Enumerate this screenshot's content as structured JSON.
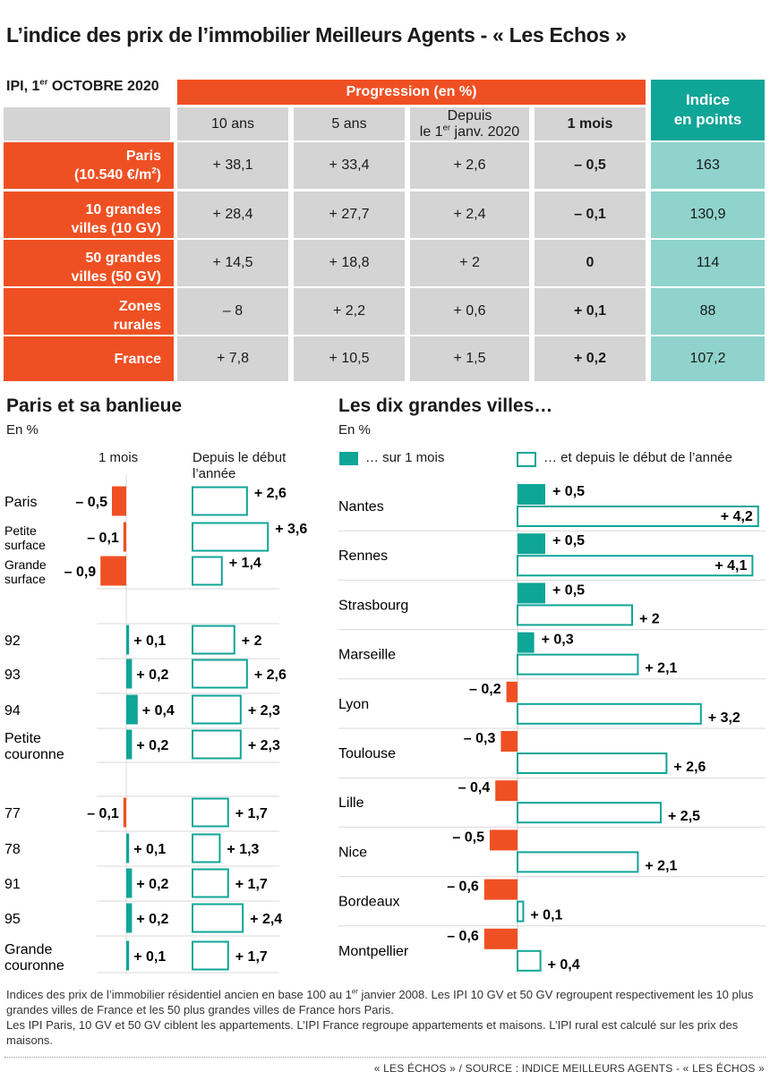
{
  "title": "L’indice des prix de l’immobilier Meilleurs Agents - « Les Echos »",
  "table": {
    "date_label_pre": "IPI, 1",
    "date_label_sup": "er",
    "date_label_post": " OCTOBRE 2020",
    "progression_header": "Progression (en %)",
    "index_header_line1": "Indice",
    "index_header_line2": "en points",
    "columns": [
      "10 ans",
      "5 ans",
      "Depuis",
      "1 mois"
    ],
    "col_since_line2_pre": "le 1",
    "col_since_line2_sup": "er",
    "col_since_line2_post": " janv. 2020",
    "rows": [
      {
        "label_line1": "Paris",
        "label_line2_pre": "(10.540 €/m",
        "label_line2_sup": "2",
        "label_line2_post": ")",
        "values": [
          "+ 38,1",
          "+ 33,4",
          "+ 2,6",
          "– 0,5"
        ],
        "index": "163"
      },
      {
        "label_line1": "10 grandes",
        "label_line2": "villes (10 GV)",
        "values": [
          "+ 28,4",
          "+ 27,7",
          "+ 2,4",
          "– 0,1"
        ],
        "index": "130,9"
      },
      {
        "label_line1": "50 grandes",
        "label_line2": "villes (50 GV)",
        "values": [
          "+ 14,5",
          "+ 18,8",
          "+ 2",
          "0"
        ],
        "index": "114"
      },
      {
        "label_line1": "Zones",
        "label_line2": "rurales",
        "values": [
          "– 8",
          "+ 2,2",
          "+ 0,6",
          "+ 0,1"
        ],
        "index": "88"
      },
      {
        "label_line1": "France",
        "label_line2": "",
        "values": [
          "+ 7,8",
          "+ 10,5",
          "+ 1,5",
          "+ 0,2"
        ],
        "index": "107,2"
      }
    ]
  },
  "paris_section": {
    "title": "Paris et sa banlieue",
    "unit": "En %",
    "col_month": "1 mois",
    "col_ytd_line1": "Depuis le début",
    "col_ytd_line2": "l’année"
  },
  "cities_section": {
    "title": "Les dix grandes villes…",
    "unit": "En %",
    "legend_month": "… sur 1 mois",
    "legend_ytd": "… et depuis le début de l’année"
  },
  "chart_data": [
    {
      "type": "bar",
      "title": "Paris et sa banlieue",
      "unit": "En %",
      "categories": [
        "Paris",
        "Petite surface",
        "Grande surface",
        "92",
        "93",
        "94",
        "Petite couronne",
        "77",
        "78",
        "91",
        "95",
        "Grande couronne"
      ],
      "series": [
        {
          "name": "1 mois",
          "values": [
            -0.5,
            -0.1,
            -0.9,
            0.1,
            0.2,
            0.4,
            0.2,
            -0.1,
            0.1,
            0.2,
            0.2,
            0.1
          ],
          "labels": [
            "– 0,5",
            "– 0,1",
            "– 0,9",
            "+ 0,1",
            "+ 0,2",
            "+ 0,4",
            "+ 0,2",
            "– 0,1",
            "+ 0,1",
            "+ 0,2",
            "+ 0,2",
            "+ 0,1"
          ]
        },
        {
          "name": "Depuis le début l’année",
          "values": [
            2.6,
            3.6,
            1.4,
            2.0,
            2.6,
            2.3,
            2.3,
            1.7,
            1.3,
            1.7,
            2.4,
            1.7
          ],
          "labels": [
            "+ 2,6",
            "+ 3,6",
            "+ 1,4",
            "+ 2",
            "+ 2,6",
            "+ 2,3",
            "+ 2,3",
            "+ 1,7",
            "+ 1,3",
            "+ 1,7",
            "+ 2,4",
            "+ 1,7"
          ]
        }
      ],
      "colors": {
        "negative": "#ef5023",
        "positive": "#0fa597",
        "outline": "#0fa597"
      }
    },
    {
      "type": "bar",
      "title": "Les dix grandes villes…",
      "unit": "En %",
      "categories": [
        "Nantes",
        "Rennes",
        "Strasbourg",
        "Marseille",
        "Lyon",
        "Toulouse",
        "Lille",
        "Nice",
        "Bordeaux",
        "Montpellier"
      ],
      "series": [
        {
          "name": "… sur 1 mois",
          "values": [
            0.5,
            0.5,
            0.5,
            0.3,
            -0.2,
            -0.3,
            -0.4,
            -0.5,
            -0.6,
            -0.6
          ],
          "labels": [
            "+ 0,5",
            "+ 0,5",
            "+ 0,5",
            "+ 0,3",
            "– 0,2",
            "– 0,3",
            "– 0,4",
            "– 0,5",
            "– 0,6",
            "– 0,6"
          ]
        },
        {
          "name": "… et depuis le début de l’année",
          "values": [
            4.2,
            4.1,
            2.0,
            2.1,
            3.2,
            2.6,
            2.5,
            2.1,
            0.1,
            0.4
          ],
          "labels": [
            "+ 4,2",
            "+ 4,1",
            "+ 2",
            "+ 2,1",
            "+ 3,2",
            "+ 2,6",
            "+ 2,5",
            "+ 2,1",
            "+ 0,1",
            "+ 0,4"
          ]
        }
      ],
      "colors": {
        "negative": "#ef5023",
        "positive": "#0fa597",
        "outline": "#0fa597"
      }
    }
  ],
  "notes": {
    "line1_pre": "Indices des prix de l’immobilier résidentiel ancien en base 100 au 1",
    "line1_sup": "er",
    "line1_post": " janvier 2008. Les IPI 10 GV et 50 GV regroupent respectivement les 10 plus grandes villes de France et les 50 plus grandes villes de France hors Paris.",
    "line2": "Les IPI Paris, 10 GV et 50 GV ciblent les appartements. L’IPI France regroupe appartements et maisons. L’IPI rural est calculé sur les prix des maisons.",
    "source": "« LES ÉCHOS » / SOURCE : INDICE MEILLEURS AGENTS - « LES ÉCHOS »"
  }
}
